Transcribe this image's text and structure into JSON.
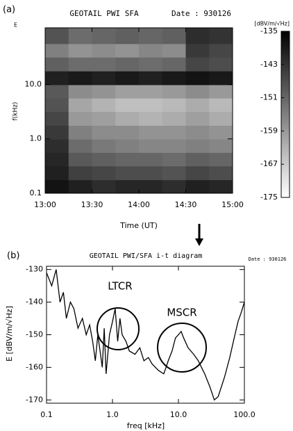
{
  "chart_data": [
    {
      "type": "heatmap",
      "panel_label": "(a)",
      "corner_label": "E",
      "title": "GEOTAIL PWI SFA",
      "date": "Date : 930126",
      "y_label": "f(kHz)",
      "x_label": "Time (UT)",
      "ylog": true,
      "ylim": [
        0.1,
        110
      ],
      "yticks": [
        0.1,
        {
          "value": 1,
          "label": "1.0"
        },
        {
          "value": 10,
          "label": "10.0"
        }
      ],
      "xlim": [
        13,
        15
      ],
      "xticks": [
        {
          "value": 13,
          "label": "13:00"
        },
        {
          "value": 13.5,
          "label": "13:30"
        },
        {
          "value": 14,
          "label": "14:00"
        },
        {
          "value": 14.5,
          "label": "14:30"
        },
        {
          "value": 15,
          "label": "15:00"
        }
      ],
      "x": [
        13.125,
        13.375,
        13.625,
        13.875,
        14.125,
        14.375,
        14.625,
        14.875
      ],
      "y": [
        0.13,
        0.24,
        0.42,
        0.75,
        1.3,
        2.4,
        4.2,
        7.5,
        13,
        24,
        42,
        75
      ],
      "z": [
        [
          -138,
          -140,
          -142,
          -141,
          -141,
          -142,
          -140,
          -141
        ],
        [
          -140,
          -145,
          -146,
          -147,
          -147,
          -148,
          -146,
          -147
        ],
        [
          -141,
          -149,
          -150,
          -151,
          -151,
          -152,
          -150,
          -151
        ],
        [
          -142,
          -152,
          -154,
          -155,
          -156,
          -156,
          -155,
          -156
        ],
        [
          -144,
          -155,
          -157,
          -157,
          -158,
          -158,
          -157,
          -158
        ],
        [
          -146,
          -159,
          -160,
          -162,
          -163,
          -162,
          -160,
          -162
        ],
        [
          -148,
          -161,
          -163,
          -165,
          -165,
          -164,
          -162,
          -164
        ],
        [
          -149,
          -157,
          -158,
          -160,
          -160,
          -159,
          -157,
          -159
        ],
        [
          -140,
          -139,
          -140,
          -139,
          -140,
          -139,
          -138,
          -139
        ],
        [
          -150,
          -152,
          -152,
          -151,
          -152,
          -151,
          -146,
          -147
        ],
        [
          -155,
          -158,
          -157,
          -158,
          -156,
          -157,
          -144,
          -146
        ],
        [
          -148,
          -152,
          -151,
          -150,
          -151,
          -150,
          -142,
          -143
        ]
      ],
      "colorbar_label": "[dBV/m/√Hz]",
      "clim": [
        -175,
        -135
      ],
      "cticks": [
        -135,
        -143,
        -151,
        -159,
        -167,
        -175
      ]
    },
    {
      "type": "line",
      "panel_label": "(b)",
      "title": "GEOTAIL PWI/SFA i-t diagram",
      "date": "Date : 930126",
      "x_label": "freq [kHz]",
      "y_label": "E [dBV/m/√Hz]",
      "xlog": true,
      "xlim": [
        0.1,
        100
      ],
      "xticks": [
        0.1,
        {
          "value": 1,
          "label": "1.0"
        },
        {
          "value": 10,
          "label": "10.0"
        },
        {
          "value": 100,
          "label": "100.0"
        }
      ],
      "ylim": [
        -171,
        -129
      ],
      "yticks": [
        -130,
        -140,
        -150,
        -160,
        -170
      ],
      "color": "#000000",
      "annotations": [
        "LTCR",
        "MSCR"
      ],
      "x": [
        0.1,
        0.12,
        0.14,
        0.16,
        0.18,
        0.2,
        0.23,
        0.26,
        0.3,
        0.35,
        0.4,
        0.45,
        0.5,
        0.55,
        0.6,
        0.7,
        0.75,
        0.8,
        0.9,
        1.0,
        1.1,
        1.2,
        1.3,
        1.4,
        1.6,
        1.8,
        2.2,
        2.6,
        3,
        3.5,
        4,
        5,
        6,
        7,
        8,
        9,
        10,
        11,
        12,
        14,
        17,
        20,
        25,
        30,
        35,
        40,
        50,
        60,
        70,
        80,
        90,
        100
      ],
      "y": [
        -131,
        -135,
        -130,
        -140,
        -137,
        -145,
        -140,
        -142,
        -148,
        -145,
        -150,
        -147,
        -152,
        -158,
        -150,
        -160,
        -148,
        -162,
        -150,
        -146,
        -142,
        -152,
        -145,
        -150,
        -152,
        -155,
        -156,
        -154,
        -158,
        -157,
        -159,
        -161,
        -162,
        -158,
        -155,
        -151,
        -150,
        -149,
        -151,
        -154,
        -156,
        -158,
        -162,
        -166,
        -170,
        -169,
        -163,
        -157,
        -151,
        -146,
        -143,
        -140
      ]
    }
  ]
}
